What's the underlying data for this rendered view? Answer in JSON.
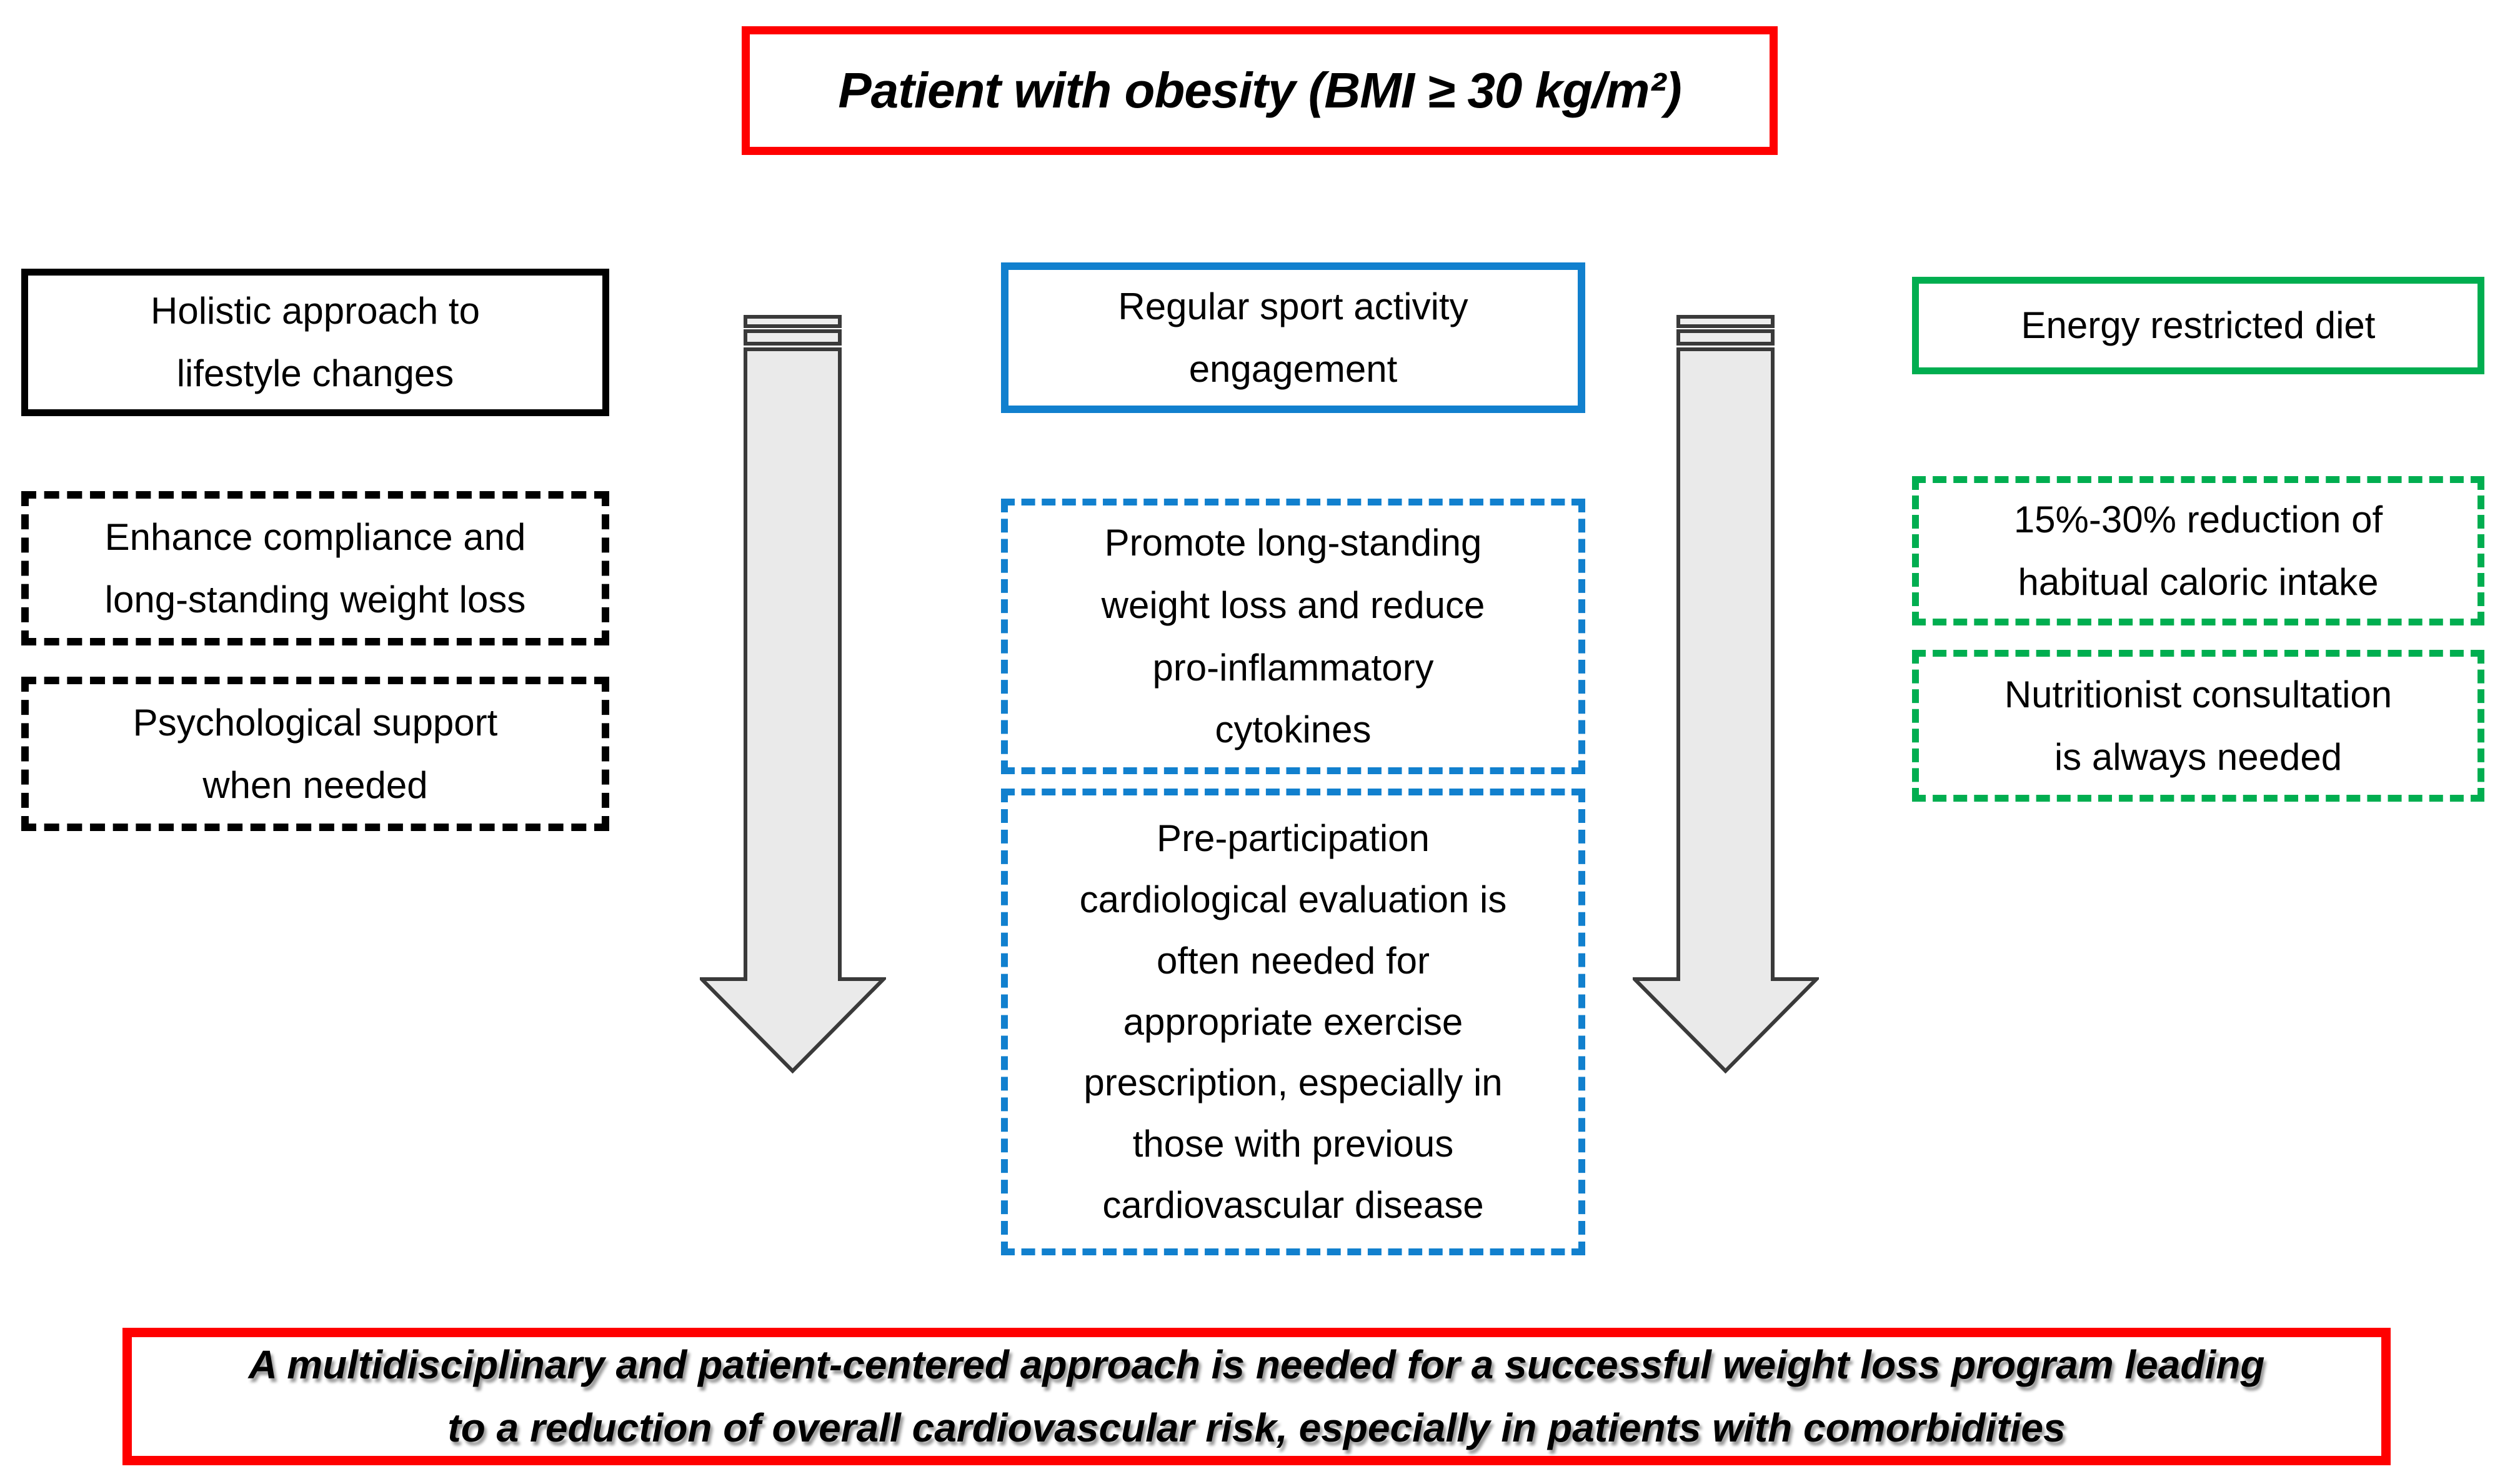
{
  "figure": {
    "title": "Patient with obesity (BMI ≥ 30 kg/m²)",
    "conclusion_lines": [
      "A multidisciplinary and patient-centered approach is needed for a successful weight loss program leading",
      "to a reduction of overall cardiovascular risk, especially in patients with comorbidities"
    ]
  },
  "columns": [
    {
      "id": "lifestyle",
      "accent_color": "#000000",
      "header_lines": [
        "Holistic approach to",
        "lifestyle changes"
      ],
      "boxes": [
        {
          "lines": [
            "Enhance compliance and",
            "long-standing weight loss"
          ]
        },
        {
          "lines": [
            "Psychological support",
            "when needed"
          ]
        }
      ]
    },
    {
      "id": "exercise",
      "accent_color": "#1180CE",
      "header_lines": [
        "Regular sport activity",
        "engagement"
      ],
      "boxes": [
        {
          "lines": [
            "Promote long-standing",
            "weight loss and reduce",
            "pro-inflammatory",
            "cytokines"
          ]
        },
        {
          "lines": [
            "Pre-participation",
            "cardiological evaluation is",
            "often needed for",
            "appropriate exercise",
            "prescription, especially in",
            "those with previous",
            "cardiovascular disease"
          ]
        }
      ]
    },
    {
      "id": "diet",
      "accent_color": "#00AE50",
      "header_lines": [
        "Energy restricted diet"
      ],
      "boxes": [
        {
          "lines": [
            "15%-30% reduction of",
            "habitual caloric intake"
          ]
        },
        {
          "lines": [
            "Nutritionist consultation",
            "is always needed"
          ]
        }
      ]
    }
  ],
  "arrows": [
    {
      "id": "left-down-arrow"
    },
    {
      "id": "right-down-arrow"
    }
  ],
  "colors": {
    "accent_red": "#FF0000",
    "accent_blue": "#1180CE",
    "accent_green": "#00AE50",
    "box_black": "#000000",
    "arrow_fill": "#EAEAEA",
    "arrow_outline": "#3A3A3A",
    "text": "#000000",
    "background": "#FFFFFF"
  }
}
